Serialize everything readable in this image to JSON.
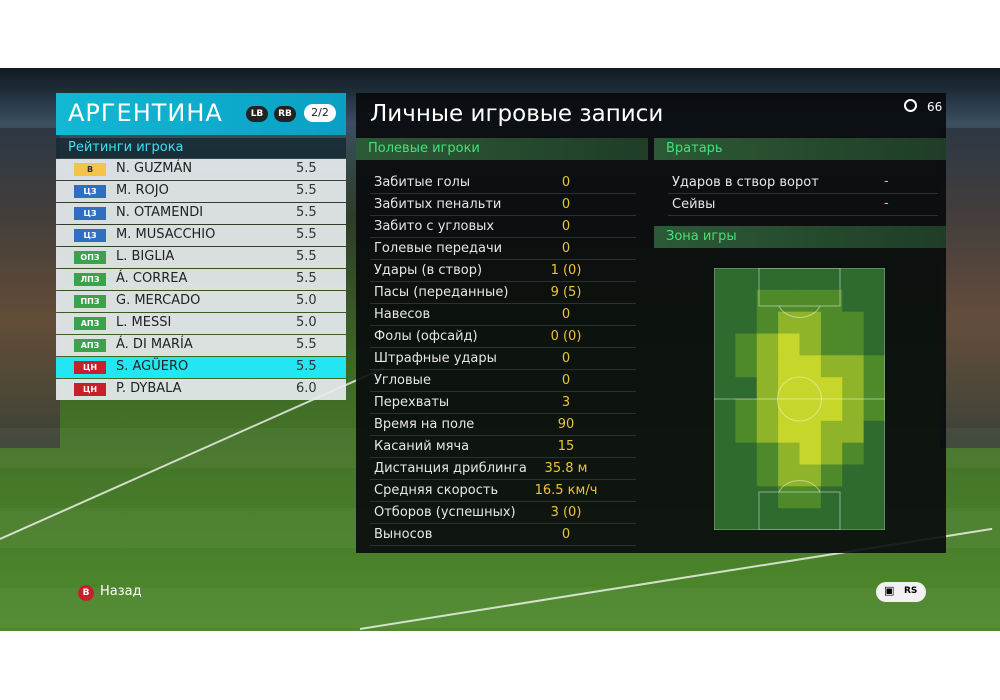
{
  "team": {
    "name": "АРГЕНТИНА",
    "lb": "LB",
    "rb": "RB",
    "page": "2/2",
    "rating_header": "Рейтинги игрока",
    "players": [
      {
        "pos": "В",
        "pos_color": "#f5c24a",
        "name": "N. GUZMÁN",
        "rating": "5.5"
      },
      {
        "pos": "ЦЗ",
        "pos_color": "#2e6fc2",
        "name": "M. ROJO",
        "rating": "5.5"
      },
      {
        "pos": "ЦЗ",
        "pos_color": "#2e6fc2",
        "name": "N. OTAMENDI",
        "rating": "5.5"
      },
      {
        "pos": "ЦЗ",
        "pos_color": "#2e6fc2",
        "name": "M. MUSACCHIO",
        "rating": "5.5"
      },
      {
        "pos": "ОПЗ",
        "pos_color": "#3aa24a",
        "name": "L. BIGLIA",
        "rating": "5.5"
      },
      {
        "pos": "ЛПЗ",
        "pos_color": "#3aa24a",
        "name": "Á. CORREA",
        "rating": "5.5"
      },
      {
        "pos": "ППЗ",
        "pos_color": "#3aa24a",
        "name": "G. MERCADO",
        "rating": "5.0"
      },
      {
        "pos": "АПЗ",
        "pos_color": "#3aa24a",
        "name": "L. MESSI",
        "rating": "5.0"
      },
      {
        "pos": "АПЗ",
        "pos_color": "#3aa24a",
        "name": "Á. DI MARÍA",
        "rating": "5.5"
      },
      {
        "pos": "ЦН",
        "pos_color": "#c8202a",
        "name": "S. AGÜERO",
        "rating": "5.5",
        "selected": true
      },
      {
        "pos": "ЦН",
        "pos_color": "#c8202a",
        "name": "P. DYBALA",
        "rating": "6.0"
      }
    ]
  },
  "records": {
    "title": "Личные игровые записи",
    "time": "66",
    "field_header": "Полевые игроки",
    "gk_header": "Вратарь",
    "zone_header": "Зона игры",
    "field_stats": [
      {
        "label": "Забитые голы",
        "value": "0"
      },
      {
        "label": "Забитых пенальти",
        "value": "0"
      },
      {
        "label": "Забито с угловых",
        "value": "0"
      },
      {
        "label": "Голевые передачи",
        "value": "0"
      },
      {
        "label": "Удары (в створ)",
        "value": "1 (0)"
      },
      {
        "label": "Пасы (переданные)",
        "value": "9 (5)"
      },
      {
        "label": "Навесов",
        "value": "0"
      },
      {
        "label": "Фолы (офсайд)",
        "value": "0 (0)"
      },
      {
        "label": "Штрафные удары",
        "value": "0"
      },
      {
        "label": "Угловые",
        "value": "0"
      },
      {
        "label": "Перехваты",
        "value": "3"
      },
      {
        "label": "Время на поле",
        "value": "90"
      },
      {
        "label": "Касаний мяча",
        "value": "15"
      },
      {
        "label": "Дистанция дриблинга",
        "value": "35.8 м"
      },
      {
        "label": "Средняя скорость",
        "value": "16.5 км/ч"
      },
      {
        "label": "Отборов (успешных)",
        "value": "3 (0)"
      },
      {
        "label": "Выносов",
        "value": "0"
      }
    ],
    "gk_stats": [
      {
        "label": "Ударов в створ ворот",
        "value": "-"
      },
      {
        "label": "Сейвы",
        "value": "-"
      }
    ]
  },
  "footer": {
    "back_button": "B",
    "back_label": "Назад",
    "right_icons": [
      "chat-icon",
      "rs-icon"
    ],
    "rs_label": "RS"
  },
  "colors": {
    "accent": "#12b8d4",
    "selected_row": "#22e6f2",
    "value_yellow": "#f0c23a",
    "section_green": "#46e07a"
  }
}
